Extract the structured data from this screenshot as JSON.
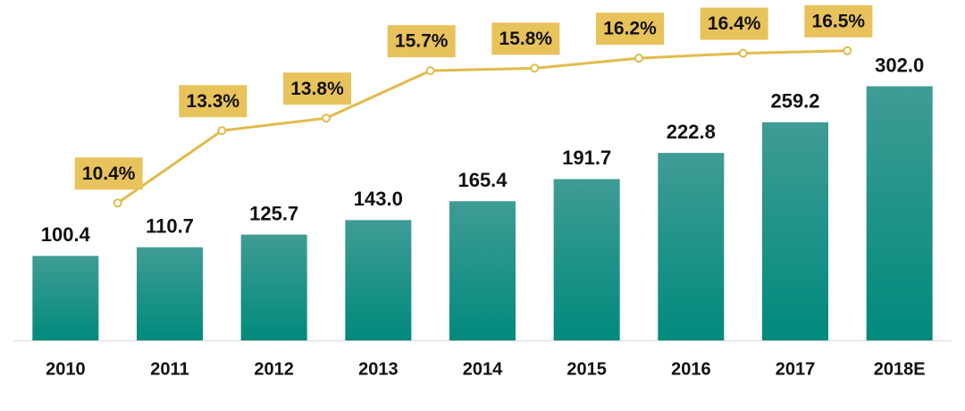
{
  "chart_data": {
    "type": "bar",
    "categories": [
      "2010",
      "2011",
      "2012",
      "2013",
      "2014",
      "2015",
      "2016",
      "2017",
      "2018E"
    ],
    "series": [
      {
        "type": "bar",
        "color": "#0f8f85",
        "values": [
          100.4,
          110.7,
          125.7,
          143.0,
          165.4,
          191.7,
          222.8,
          259.2,
          302.0
        ],
        "value_labels": [
          "100.4",
          "110.7",
          "125.7",
          "143.0",
          "165.4",
          "191.7",
          "222.8",
          "259.2",
          "302.0"
        ]
      },
      {
        "type": "line",
        "axis": "y2",
        "color": "#e2bb4c",
        "values": [
          null,
          10.4,
          13.3,
          13.8,
          15.7,
          15.8,
          16.2,
          16.4,
          16.5
        ],
        "value_labels": [
          null,
          "10.4%",
          "13.3%",
          "13.8%",
          "15.7%",
          "15.8%",
          "16.2%",
          "16.4%",
          "16.5%"
        ]
      }
    ],
    "ylim": [
      0,
      362
    ],
    "y2lim": [
      4.9,
      17.1
    ]
  }
}
